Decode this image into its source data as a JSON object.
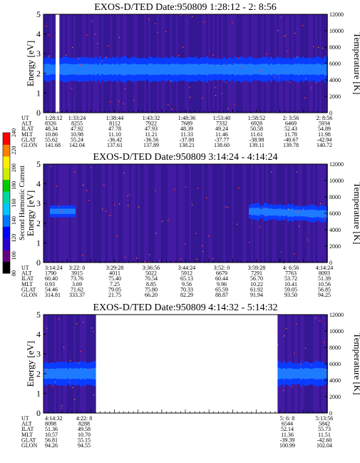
{
  "colorbar": {
    "label": "Second Harmonic Current",
    "ticks": [
      "80",
      "100",
      "120",
      "140",
      "160",
      "180",
      "200",
      "220",
      "240"
    ],
    "colors": [
      "#000000",
      "#6a0080",
      "#2a00d0",
      "#0000ff",
      "#0077ff",
      "#00c8ff",
      "#00d8a0",
      "#00cc00",
      "#ccee00",
      "#ffee00",
      "#ff7f00",
      "#ff0000"
    ]
  },
  "chart_data": [
    {
      "type": "heatmap",
      "title": "EXOS-D/TED   Date:950809  1:28:12 - 2: 8:56",
      "ylabel": "Energy [eV]",
      "y2label": "Temperature [K]",
      "ylim": [
        0,
        5
      ],
      "y2lim": [
        0,
        12000
      ],
      "yticks": [
        "0",
        "1",
        "2",
        "3",
        "4",
        "5"
      ],
      "y2ticks": [
        "0",
        "2000",
        "4000",
        "6000",
        "8000",
        "10000",
        "12000"
      ],
      "band": {
        "center": 2.2,
        "halfwidth": 0.6
      },
      "gaps": [
        [
          0.043,
          0.056
        ]
      ],
      "row_labels": [
        "UT",
        "ALT",
        "ILAT",
        "MLT",
        "GLAT",
        "GLON"
      ],
      "columns": [
        [
          "1:28:12",
          "8326",
          "48.34",
          "10.86",
          "55.62",
          "141.68"
        ],
        [
          "1:33:24",
          "8255",
          "47.92",
          "10.98",
          "55.24",
          "142.04"
        ],
        [
          "1:38:44",
          "8112",
          "47.78",
          "11.10",
          "-36.42",
          "137.61"
        ],
        [
          "1:43:32",
          "7922",
          "47.93",
          "11.21",
          "-36.56",
          "137.89"
        ],
        [
          "1:48:36",
          "7689",
          "48.39",
          "11.33",
          "-37.00",
          "138.21"
        ],
        [
          "1:53:40",
          "7332",
          "49.24",
          "11.46",
          "-37.77",
          "138.60"
        ],
        [
          "1:58:52",
          "6928",
          "50.58",
          "11.61",
          "-38.98",
          "139.11"
        ],
        [
          "2: 3:56",
          "6469",
          "52.43",
          "11.78",
          "-40.67",
          "139.78"
        ],
        [
          "2: 8:56",
          "5934",
          "54.89",
          "11.98",
          "-42.94",
          "140.72"
        ]
      ]
    },
    {
      "type": "heatmap",
      "title": "EXOS-D/TED   Date:950809  3:14:24 - 4:14:24",
      "ylabel": "Energy [eV]",
      "y2label": "Temperature [K]",
      "ylim": [
        0,
        5
      ],
      "y2lim": [
        0,
        12000
      ],
      "yticks": [
        "0",
        "1",
        "2",
        "3",
        "4",
        "5"
      ],
      "y2ticks": [
        "0",
        "2000",
        "4000",
        "6000",
        "8000",
        "10000",
        "12000"
      ],
      "band": {
        "center": 2.6,
        "halfwidth": 0.4,
        "start": 0.72
      },
      "gaps": [],
      "row_labels": [
        "UT",
        "ALT",
        "ILAT",
        "MLT",
        "GLAT",
        "GLON"
      ],
      "columns": [
        [
          "3:14:24",
          "1790",
          "60.40",
          "0.93",
          "54.46",
          "314.81"
        ],
        [
          "3:22: 0",
          "3915",
          "73.76",
          "3.69",
          "71.62",
          "333.37"
        ],
        [
          "3:29:28",
          "4011",
          "75.40",
          "7.25",
          "79.05",
          "21.75"
        ],
        [
          "3:36:56",
          "5022",
          "70.54",
          "8.85",
          "75.80",
          "66.20"
        ],
        [
          "3:44:24",
          "5912",
          "65.13",
          "9.56",
          "70.33",
          "82.29"
        ],
        [
          "3:52: 0",
          "6679",
          "60.44",
          "9.96",
          "65.59",
          "88.87"
        ],
        [
          "3:59:28",
          "7291",
          "56.70",
          "10.22",
          "61.92",
          "91.94"
        ],
        [
          "4: 6:56",
          "7763",
          "53.72",
          "10.41",
          "59.05",
          "93.50"
        ],
        [
          "4:14:24",
          "8093",
          "51.39",
          "10.56",
          "56.85",
          "94.25"
        ]
      ]
    },
    {
      "type": "heatmap",
      "title": "EXOS-D/TED   Date:950809  4:14:32 - 5:14:32",
      "ylabel": "Energy [eV]",
      "y2label": "Temperature [K]",
      "ylim": [
        0,
        5
      ],
      "y2lim": [
        0,
        12000
      ],
      "yticks": [
        "0",
        "1",
        "2",
        "3",
        "4",
        "5"
      ],
      "y2ticks": [
        "0",
        "2000",
        "4000",
        "6000",
        "8000",
        "10000",
        "12000"
      ],
      "band": {
        "center": 2.0,
        "halfwidth": 0.6
      },
      "gaps": [
        [
          0.185,
          0.825
        ]
      ],
      "row_labels": [
        "UT",
        "ALT",
        "ILAT",
        "MLT",
        "GLAT",
        "GLON"
      ],
      "columns": [
        [
          "4:14:32",
          "8098",
          "51.36",
          "10.57",
          "56.81",
          "94.26"
        ],
        [
          "4:22: 8",
          "8288",
          "49.58",
          "10.70",
          "55.15",
          "94.55"
        ],
        [
          "5: 6: 8",
          "6544",
          "52.14",
          "11.36",
          "-39.39",
          "100.99"
        ],
        [
          "5:13:56",
          "5842",
          "55.73",
          "11.51",
          "-42.60",
          "102.04"
        ]
      ]
    }
  ]
}
